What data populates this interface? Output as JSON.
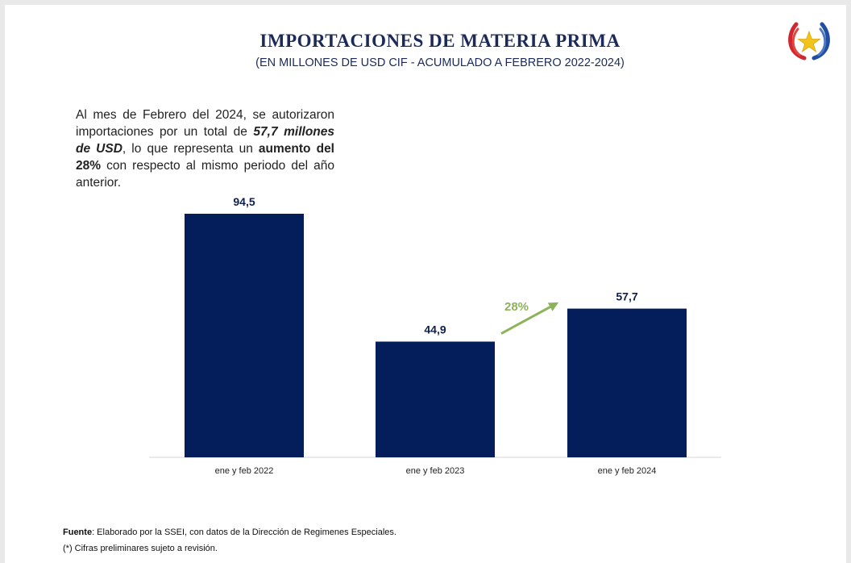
{
  "title": "IMPORTACIONES DE MATERIA PRIMA",
  "subtitle": "(EN MILLONES DE USD CIF - ACUMULADO A FEBRERO 2022-2024)",
  "summary": {
    "part1": "Al mes de Febrero del 2024, se autorizaron importaciones por un total de ",
    "amount": "57,7 millones de USD",
    "part2": ",  lo que representa un ",
    "highlight": "aumento del 28%",
    "part3": " con respecto al mismo periodo del año anterior."
  },
  "footer": {
    "source_label": "Fuente",
    "source_text": ": Elaborado por la SSEI, con datos de la Dirección de Regimenes Especiales.",
    "note": "(*) Cifras preliminares sujeto a revisión."
  },
  "logo_icon": "paraguay-coat-of-arms-star-icon",
  "colors": {
    "bar": "#041e5c",
    "title": "#1b2a57",
    "growth": "#8db35a",
    "axis": "#d6d6d6"
  },
  "chart_data": {
    "type": "bar",
    "title": "IMPORTACIONES DE MATERIA PRIMA",
    "subtitle": "(EN MILLONES DE USD CIF - ACUMULADO A FEBRERO 2022-2024)",
    "categories": [
      "ene y feb 2022",
      "ene y feb 2023",
      "ene y feb 2024"
    ],
    "values": [
      94.5,
      44.9,
      57.7
    ],
    "value_labels": [
      "94,5",
      "44,9",
      "57,7"
    ],
    "ylim": [
      0,
      100
    ],
    "grid": false,
    "annotations": [
      {
        "text": "28%",
        "from": "ene y feb 2023",
        "to": "ene y feb 2024",
        "kind": "growth-arrow"
      }
    ]
  }
}
